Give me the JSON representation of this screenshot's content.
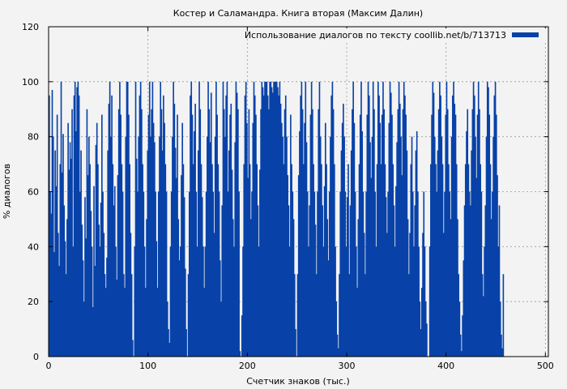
{
  "chart_data": {
    "type": "bar",
    "title": "Костер и Саламандра. Книга вторая (Максим Далин)",
    "xlabel": "Счетчик знаков (тыс.)",
    "ylabel": "% диалогов",
    "xlim": [
      0,
      503
    ],
    "ylim": [
      0,
      120
    ],
    "xticks": [
      0,
      100,
      200,
      300,
      400,
      500
    ],
    "yticks": [
      0,
      20,
      40,
      60,
      80,
      100,
      120
    ],
    "grid": true,
    "legend_position": "top-right",
    "series": [
      {
        "name": "Использование диалогов по тексту coollib.net/b/713713",
        "color": "#0842a8",
        "x_step": 1,
        "values": [
          95,
          60,
          52,
          97,
          80,
          38,
          75,
          62,
          88,
          45,
          33,
          70,
          100,
          67,
          81,
          55,
          42,
          30,
          50,
          85,
          68,
          78,
          72,
          90,
          40,
          95,
          100,
          82,
          98,
          100,
          95,
          60,
          75,
          48,
          35,
          20,
          58,
          43,
          90,
          66,
          80,
          70,
          53,
          40,
          18,
          62,
          33,
          77,
          85,
          70,
          48,
          40,
          56,
          88,
          60,
          45,
          30,
          25,
          36,
          75,
          92,
          100,
          80,
          95,
          70,
          55,
          62,
          40,
          28,
          66,
          90,
          100,
          88,
          70,
          60,
          30,
          25,
          80,
          100,
          100,
          88,
          70,
          45,
          30,
          6,
          0,
          40,
          100,
          72,
          60,
          80,
          95,
          100,
          90,
          70,
          60,
          40,
          25,
          50,
          75,
          88,
          100,
          80,
          90,
          100,
          85,
          78,
          60,
          42,
          25,
          60,
          80,
          100,
          90,
          75,
          95,
          85,
          70,
          60,
          20,
          10,
          5,
          40,
          60,
          80,
          100,
          92,
          76,
          65,
          88,
          50,
          35,
          40,
          66,
          85,
          70,
          58,
          32,
          10,
          0,
          30,
          60,
          95,
          100,
          88,
          70,
          82,
          92,
          60,
          40,
          75,
          100,
          90,
          70,
          58,
          40,
          25,
          40,
          60,
          80,
          100,
          90,
          78,
          96,
          70,
          60,
          45,
          80,
          100,
          88,
          70,
          60,
          35,
          20,
          55,
          100,
          90,
          80,
          95,
          100,
          60,
          75,
          88,
          92,
          68,
          50,
          40,
          78,
          100,
          96,
          90,
          60,
          2,
          0,
          15,
          40,
          70,
          95,
          100,
          85,
          65,
          90,
          70,
          50,
          60,
          85,
          100,
          95,
          88,
          70,
          55,
          40,
          68,
          90,
          100,
          98,
          95,
          100,
          100,
          100,
          95,
          90,
          100,
          100,
          98,
          96,
          100,
          100,
          100,
          100,
          98,
          95,
          100,
          92,
          85,
          80,
          70,
          90,
          95,
          80,
          66,
          55,
          40,
          88,
          70,
          60,
          50,
          30,
          10,
          0,
          30,
          66,
          82,
          95,
          100,
          90,
          70,
          85,
          100,
          78,
          60,
          40,
          55,
          88,
          100,
          90,
          70,
          60,
          48,
          30,
          60,
          90,
          100,
          80,
          70,
          55,
          40,
          62,
          85,
          70,
          50,
          35,
          60,
          80,
          95,
          100,
          90,
          70,
          40,
          20,
          8,
          3,
          30,
          60,
          75,
          85,
          92,
          80,
          60,
          40,
          58,
          70,
          30,
          55,
          75,
          90,
          100,
          85,
          60,
          40,
          25,
          50,
          70,
          88,
          100,
          82,
          60,
          45,
          30,
          60,
          88,
          100,
          95,
          78,
          65,
          80,
          100,
          90,
          60,
          40,
          70,
          100,
          95,
          85,
          70,
          88,
          100,
          90,
          70,
          58,
          45,
          60,
          85,
          100,
          96,
          88,
          70,
          55,
          40,
          62,
          78,
          90,
          100,
          92,
          80,
          66,
          90,
          100,
          95,
          88,
          75,
          50,
          30,
          45,
          70,
          80,
          60,
          40,
          55,
          75,
          82,
          60,
          40,
          20,
          10,
          25,
          45,
          60,
          40,
          20,
          12,
          0,
          0,
          40,
          70,
          88,
          100,
          96,
          80,
          70,
          60,
          75,
          90,
          100,
          95,
          80,
          70,
          45,
          60,
          88,
          100,
          90,
          70,
          60,
          50,
          80,
          95,
          100,
          92,
          88,
          70,
          50,
          30,
          20,
          8,
          2,
          15,
          35,
          55,
          70,
          82,
          90,
          70,
          60,
          55,
          75,
          90,
          100,
          95,
          80,
          65,
          88,
          100,
          90,
          70,
          60,
          30,
          22,
          40,
          55,
          80,
          100,
          98,
          88,
          70,
          50,
          60,
          80,
          95,
          100,
          88,
          66,
          40,
          55,
          20,
          8,
          3,
          30
        ]
      }
    ]
  }
}
